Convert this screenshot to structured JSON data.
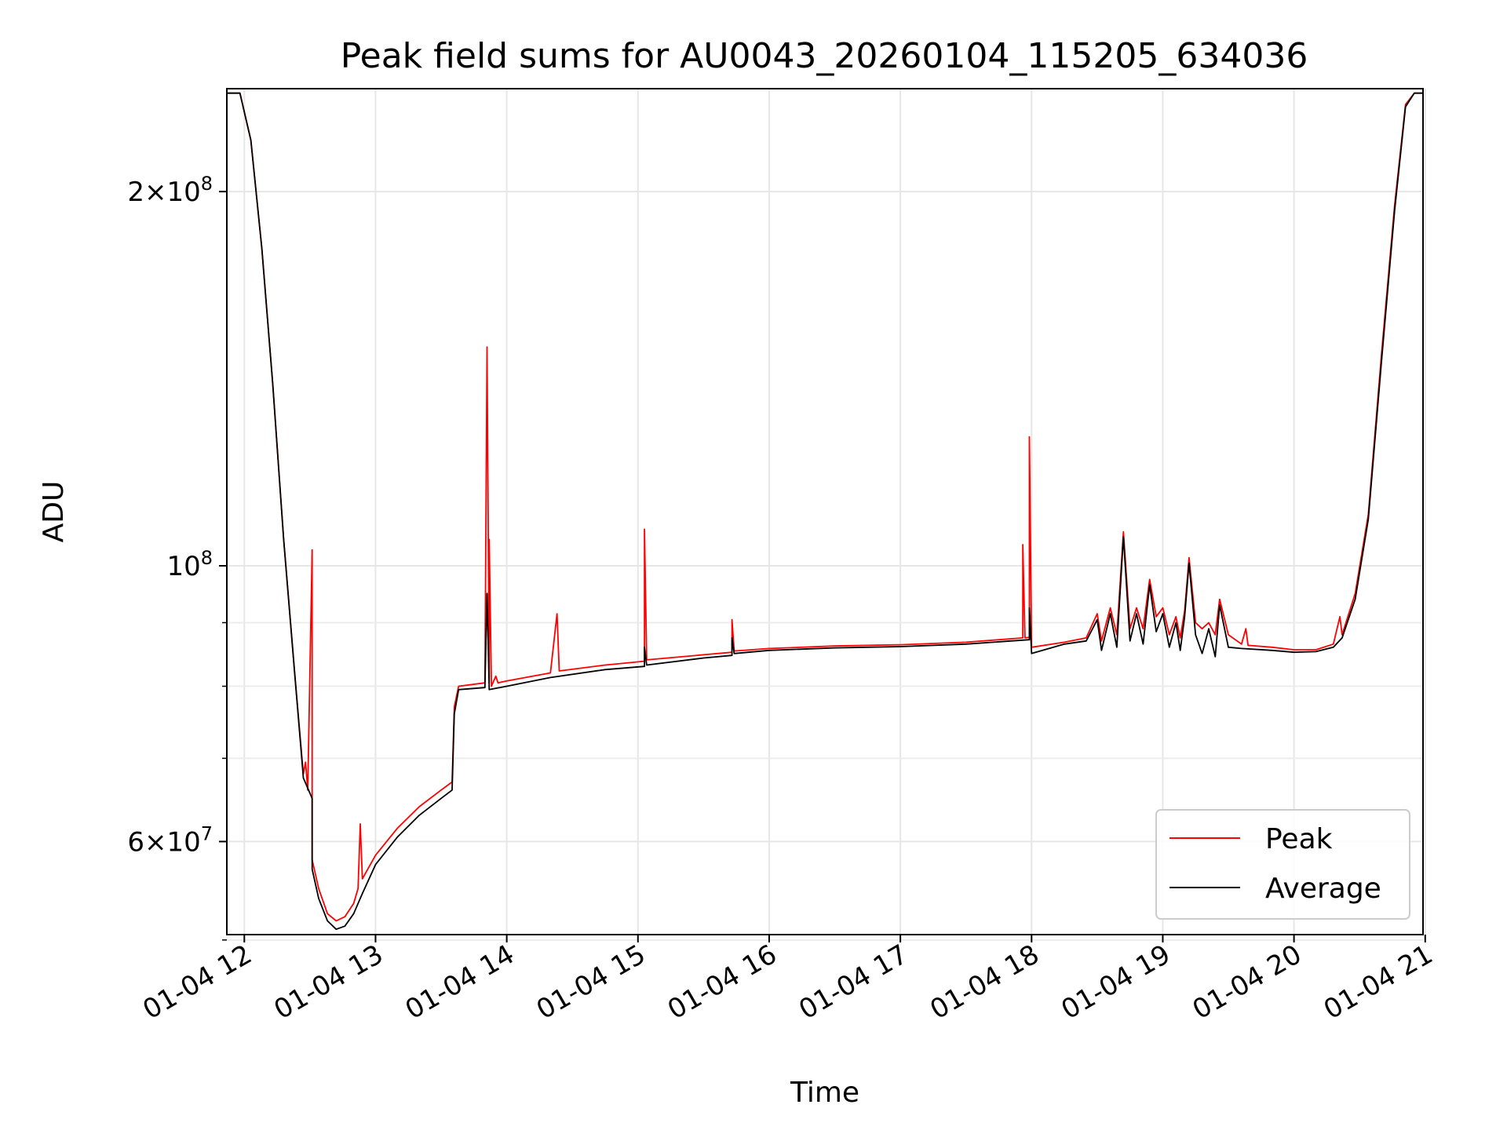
{
  "chart_data": {
    "type": "line",
    "title": "Peak field sums for AU0043_20260104_115205_634036",
    "xlabel": "Time",
    "ylabel": "ADU",
    "y_scale": "log",
    "grid": true,
    "legend_position": "lower-right",
    "xlim": [
      "01-04 11:52",
      "01-04 20:59"
    ],
    "ylim": [
      50500000,
      242000000
    ],
    "x_ticks": [
      "01-04 12",
      "01-04 13",
      "01-04 14",
      "01-04 15",
      "01-04 16",
      "01-04 17",
      "01-04 18",
      "01-04 19",
      "01-04 20",
      "01-04 21"
    ],
    "x_tick_times": [
      "01-04 12:00",
      "01-04 13:00",
      "01-04 14:00",
      "01-04 15:00",
      "01-04 16:00",
      "01-04 17:00",
      "01-04 18:00",
      "01-04 19:00",
      "01-04 20:00",
      "01-04 21:00"
    ],
    "y_ticks": [
      {
        "value": 60000000,
        "mant": "6",
        "exp": "7"
      },
      {
        "value": 100000000,
        "mant": "",
        "exp": "8"
      },
      {
        "value": 200000000,
        "mant": "2",
        "exp": "8"
      }
    ],
    "y_minor_ticks": [
      50000000,
      70000000,
      80000000,
      90000000
    ],
    "series": [
      {
        "name": "Peak",
        "color": "#ff0000",
        "points": [
          [
            "01-04 11:52",
            240000000
          ],
          [
            "01-04 11:58",
            240000000
          ],
          [
            "01-04 12:03",
            220000000
          ],
          [
            "01-04 12:08",
            180000000
          ],
          [
            "01-04 12:13",
            140000000
          ],
          [
            "01-04 12:18",
            105000000
          ],
          [
            "01-04 12:23",
            82000000
          ],
          [
            "01-04 12:27",
            68000000
          ],
          [
            "01-04 12:28",
            69500000
          ],
          [
            "01-04 12:29",
            66000000
          ],
          [
            "01-04 12:31",
            103000000
          ],
          [
            "01-04 12:31",
            58000000
          ],
          [
            "01-04 12:34",
            55000000
          ],
          [
            "01-04 12:38",
            52500000
          ],
          [
            "01-04 12:42",
            51800000
          ],
          [
            "01-04 12:46",
            52200000
          ],
          [
            "01-04 12:50",
            53500000
          ],
          [
            "01-04 12:52",
            55000000
          ],
          [
            "01-04 12:53",
            62000000
          ],
          [
            "01-04 12:54",
            56000000
          ],
          [
            "01-04 13:00",
            58500000
          ],
          [
            "01-04 13:10",
            61500000
          ],
          [
            "01-04 13:20",
            64000000
          ],
          [
            "01-04 13:30",
            66000000
          ],
          [
            "01-04 13:35",
            67000000
          ],
          [
            "01-04 13:36",
            77000000
          ],
          [
            "01-04 13:38",
            80000000
          ],
          [
            "01-04 13:50",
            80500000
          ],
          [
            "01-04 13:51",
            150000000
          ],
          [
            "01-04 13:52",
            80500000
          ],
          [
            "01-04 13:52",
            105000000
          ],
          [
            "01-04 13:53",
            80000000
          ],
          [
            "01-04 13:55",
            81500000
          ],
          [
            "01-04 13:56",
            80500000
          ],
          [
            "01-04 14:00",
            80800000
          ],
          [
            "01-04 14:20",
            82000000
          ],
          [
            "01-04 14:23",
            91500000
          ],
          [
            "01-04 14:24",
            82300000
          ],
          [
            "01-04 14:45",
            83200000
          ],
          [
            "01-04 15:03",
            83800000
          ],
          [
            "01-04 15:03",
            107000000
          ],
          [
            "01-04 15:04",
            84000000
          ],
          [
            "01-04 15:30",
            84800000
          ],
          [
            "01-04 15:43",
            85200000
          ],
          [
            "01-04 15:43",
            90500000
          ],
          [
            "01-04 15:44",
            85400000
          ],
          [
            "01-04 16:00",
            85800000
          ],
          [
            "01-04 16:30",
            86200000
          ],
          [
            "01-04 17:00",
            86400000
          ],
          [
            "01-04 17:30",
            86800000
          ],
          [
            "01-04 17:56",
            87500000
          ],
          [
            "01-04 17:56",
            104000000
          ],
          [
            "01-04 17:57",
            87500000
          ],
          [
            "01-04 17:59",
            87600000
          ],
          [
            "01-04 17:59",
            127000000
          ],
          [
            "01-04 18:00",
            86000000
          ],
          [
            "01-04 18:15",
            86800000
          ],
          [
            "01-04 18:25",
            87500000
          ],
          [
            "01-04 18:30",
            91500000
          ],
          [
            "01-04 18:32",
            87000000
          ],
          [
            "01-04 18:36",
            92500000
          ],
          [
            "01-04 18:39",
            88000000
          ],
          [
            "01-04 18:42",
            106500000
          ],
          [
            "01-04 18:45",
            89000000
          ],
          [
            "01-04 18:48",
            92500000
          ],
          [
            "01-04 18:51",
            89000000
          ],
          [
            "01-04 18:54",
            97500000
          ],
          [
            "01-04 18:57",
            91000000
          ],
          [
            "01-04 19:00",
            92500000
          ],
          [
            "01-04 19:03",
            88000000
          ],
          [
            "01-04 19:06",
            91000000
          ],
          [
            "01-04 19:08",
            87500000
          ],
          [
            "01-04 19:10",
            92000000
          ],
          [
            "01-04 19:12",
            101500000
          ],
          [
            "01-04 19:15",
            90000000
          ],
          [
            "01-04 19:18",
            89000000
          ],
          [
            "01-04 19:21",
            90000000
          ],
          [
            "01-04 19:24",
            88000000
          ],
          [
            "01-04 19:26",
            94000000
          ],
          [
            "01-04 19:30",
            88000000
          ],
          [
            "01-04 19:36",
            86500000
          ],
          [
            "01-04 19:38",
            89000000
          ],
          [
            "01-04 19:39",
            86300000
          ],
          [
            "01-04 19:50",
            86000000
          ],
          [
            "01-04 20:00",
            85600000
          ],
          [
            "01-04 20:10",
            85600000
          ],
          [
            "01-04 20:18",
            86500000
          ],
          [
            "01-04 20:21",
            91000000
          ],
          [
            "01-04 20:22",
            88000000
          ],
          [
            "01-04 20:28",
            95000000
          ],
          [
            "01-04 20:34",
            110000000
          ],
          [
            "01-04 20:40",
            148000000
          ],
          [
            "01-04 20:46",
            195000000
          ],
          [
            "01-04 20:51",
            235000000
          ],
          [
            "01-04 20:55",
            240000000
          ],
          [
            "01-04 20:59",
            240000000
          ]
        ]
      },
      {
        "name": "Average",
        "color": "#000000",
        "points": [
          [
            "01-04 11:52",
            240000000
          ],
          [
            "01-04 11:58",
            240000000
          ],
          [
            "01-04 12:03",
            220000000
          ],
          [
            "01-04 12:08",
            180000000
          ],
          [
            "01-04 12:13",
            140000000
          ],
          [
            "01-04 12:18",
            105000000
          ],
          [
            "01-04 12:23",
            82000000
          ],
          [
            "01-04 12:27",
            67500000
          ],
          [
            "01-04 12:31",
            65000000
          ],
          [
            "01-04 12:31",
            57000000
          ],
          [
            "01-04 12:34",
            54000000
          ],
          [
            "01-04 12:38",
            51800000
          ],
          [
            "01-04 12:42",
            51000000
          ],
          [
            "01-04 12:46",
            51300000
          ],
          [
            "01-04 12:50",
            52500000
          ],
          [
            "01-04 12:54",
            54500000
          ],
          [
            "01-04 13:00",
            57500000
          ],
          [
            "01-04 13:10",
            60500000
          ],
          [
            "01-04 13:20",
            63000000
          ],
          [
            "01-04 13:30",
            65000000
          ],
          [
            "01-04 13:35",
            66000000
          ],
          [
            "01-04 13:36",
            76000000
          ],
          [
            "01-04 13:38",
            79500000
          ],
          [
            "01-04 13:50",
            79800000
          ],
          [
            "01-04 13:51",
            95000000
          ],
          [
            "01-04 13:52",
            79500000
          ],
          [
            "01-04 14:00",
            80000000
          ],
          [
            "01-04 14:20",
            81300000
          ],
          [
            "01-04 14:45",
            82500000
          ],
          [
            "01-04 15:03",
            83000000
          ],
          [
            "01-04 15:03",
            86000000
          ],
          [
            "01-04 15:04",
            83200000
          ],
          [
            "01-04 15:30",
            84300000
          ],
          [
            "01-04 15:43",
            84700000
          ],
          [
            "01-04 15:43",
            87500000
          ],
          [
            "01-04 15:44",
            85000000
          ],
          [
            "01-04 16:00",
            85500000
          ],
          [
            "01-04 16:30",
            85900000
          ],
          [
            "01-04 17:00",
            86100000
          ],
          [
            "01-04 17:30",
            86500000
          ],
          [
            "01-04 17:59",
            87200000
          ],
          [
            "01-04 17:59",
            92500000
          ],
          [
            "01-04 18:00",
            85000000
          ],
          [
            "01-04 18:15",
            86500000
          ],
          [
            "01-04 18:25",
            87000000
          ],
          [
            "01-04 18:30",
            90500000
          ],
          [
            "01-04 18:32",
            85500000
          ],
          [
            "01-04 18:36",
            91500000
          ],
          [
            "01-04 18:39",
            86000000
          ],
          [
            "01-04 18:42",
            105500000
          ],
          [
            "01-04 18:45",
            87000000
          ],
          [
            "01-04 18:48",
            91500000
          ],
          [
            "01-04 18:51",
            86500000
          ],
          [
            "01-04 18:54",
            96500000
          ],
          [
            "01-04 18:57",
            88500000
          ],
          [
            "01-04 19:00",
            91500000
          ],
          [
            "01-04 19:03",
            86000000
          ],
          [
            "01-04 19:06",
            90000000
          ],
          [
            "01-04 19:08",
            85500000
          ],
          [
            "01-04 19:10",
            91000000
          ],
          [
            "01-04 19:12",
            100500000
          ],
          [
            "01-04 19:15",
            88000000
          ],
          [
            "01-04 19:18",
            85000000
          ],
          [
            "01-04 19:21",
            89000000
          ],
          [
            "01-04 19:24",
            84500000
          ],
          [
            "01-04 19:26",
            93000000
          ],
          [
            "01-04 19:30",
            86000000
          ],
          [
            "01-04 19:36",
            85800000
          ],
          [
            "01-04 19:50",
            85500000
          ],
          [
            "01-04 20:00",
            85200000
          ],
          [
            "01-04 20:10",
            85300000
          ],
          [
            "01-04 20:18",
            86000000
          ],
          [
            "01-04 20:22",
            87500000
          ],
          [
            "01-04 20:28",
            94000000
          ],
          [
            "01-04 20:34",
            109000000
          ],
          [
            "01-04 20:40",
            146000000
          ],
          [
            "01-04 20:46",
            193000000
          ],
          [
            "01-04 20:51",
            234000000
          ],
          [
            "01-04 20:55",
            240000000
          ],
          [
            "01-04 20:59",
            240000000
          ]
        ]
      }
    ]
  }
}
